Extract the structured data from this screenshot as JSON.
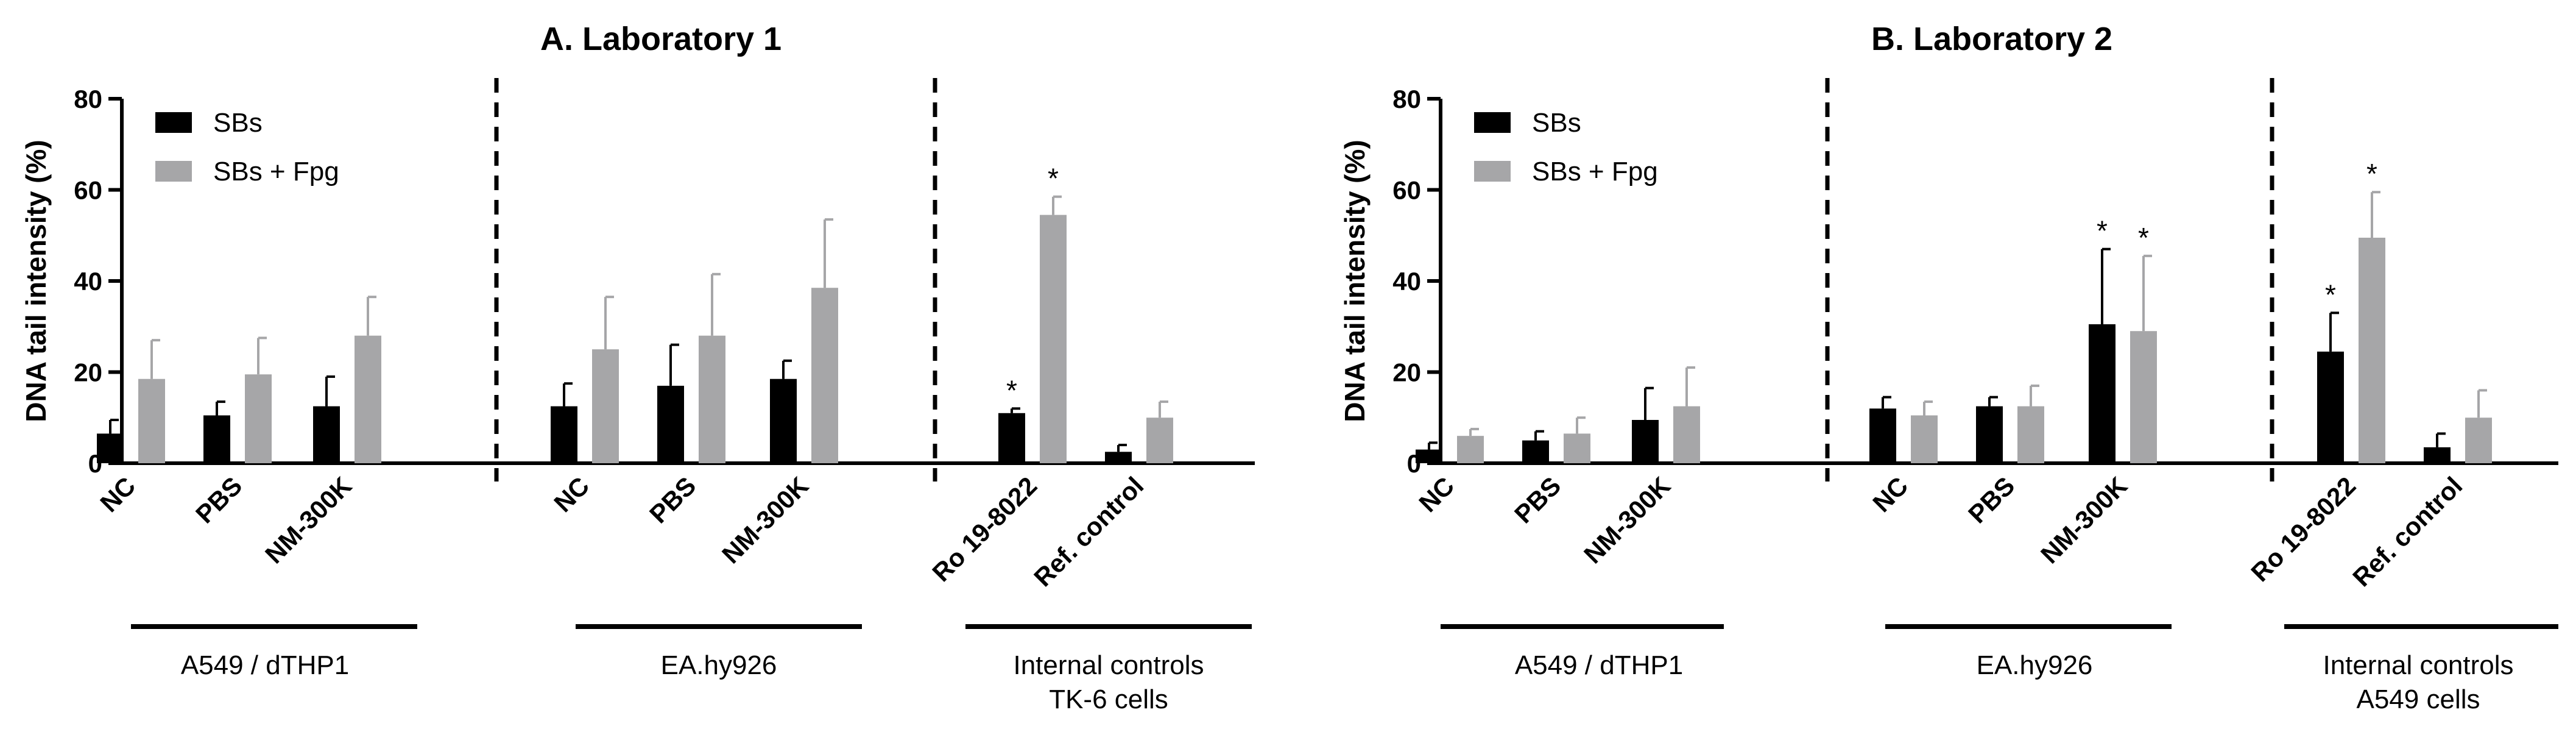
{
  "colors": {
    "sbs": "#000000",
    "sbs_fpg": "#a6a6a8",
    "axis": "#000000"
  },
  "chart_data": [
    {
      "type": "bar",
      "title": "A. Laboratory 1",
      "ylabel": "DNA tail intensity (%)",
      "xlabel": "",
      "ylim": [
        0,
        80
      ],
      "yticks": [
        "0",
        "20",
        "40",
        "60",
        "80"
      ],
      "categories": [
        "NC",
        "PBS",
        "NM-300K",
        "NC",
        "PBS",
        "NM-300K",
        "Ro 19-8022",
        "Ref. control"
      ],
      "series": [
        {
          "name": "SBs",
          "values": [
            6.5,
            10.5,
            12.5,
            12.5,
            17,
            18.5,
            11,
            2.5
          ],
          "errors": [
            3,
            3,
            6.5,
            5,
            9,
            4,
            1,
            1.5
          ]
        },
        {
          "name": "SBs + Fpg",
          "values": [
            18.5,
            19.5,
            28,
            25,
            28,
            38.5,
            54.5,
            10
          ],
          "errors": [
            8.5,
            8,
            8.5,
            11.5,
            13.5,
            15,
            4,
            3.5
          ]
        }
      ],
      "significance": [
        {
          "category_index": 6,
          "series": 0,
          "label": "*"
        },
        {
          "category_index": 6,
          "series": 1,
          "label": "*"
        }
      ],
      "groups": [
        {
          "label": "A549 / dTHP1",
          "range": [
            0,
            2
          ]
        },
        {
          "label": "EA.hy926",
          "range": [
            3,
            5
          ]
        },
        {
          "label": "Internal controls\nTK-6 cells",
          "range": [
            6,
            7
          ]
        }
      ],
      "legend": {
        "position": "top-left",
        "entries": [
          "SBs",
          "SBs + Fpg"
        ]
      }
    },
    {
      "type": "bar",
      "title": "B. Laboratory 2",
      "ylabel": "DNA tail intensity (%)",
      "xlabel": "",
      "ylim": [
        0,
        80
      ],
      "yticks": [
        "0",
        "20",
        "40",
        "60",
        "80"
      ],
      "categories": [
        "NC",
        "PBS",
        "NM-300K",
        "NC",
        "PBS",
        "NM-300K",
        "Ro 19-8022",
        "Ref. control"
      ],
      "series": [
        {
          "name": "SBs",
          "values": [
            3,
            5,
            9.5,
            12,
            12.5,
            30.5,
            24.5,
            3.5
          ],
          "errors": [
            1.5,
            2,
            7,
            2.5,
            2,
            16.5,
            8.5,
            3
          ]
        },
        {
          "name": "SBs + Fpg",
          "values": [
            6,
            6.5,
            12.5,
            10.5,
            12.5,
            29,
            49.5,
            10
          ],
          "errors": [
            1.5,
            3.5,
            8.5,
            3,
            4.5,
            16.5,
            10,
            6
          ]
        }
      ],
      "significance": [
        {
          "category_index": 5,
          "series": 0,
          "label": "*"
        },
        {
          "category_index": 5,
          "series": 1,
          "label": "*"
        },
        {
          "category_index": 6,
          "series": 0,
          "label": "*"
        },
        {
          "category_index": 6,
          "series": 1,
          "label": "*"
        }
      ],
      "groups": [
        {
          "label": "A549 / dTHP1",
          "range": [
            0,
            2
          ]
        },
        {
          "label": "EA.hy926",
          "range": [
            3,
            5
          ]
        },
        {
          "label": "Internal controls\nA549 cells",
          "range": [
            6,
            7
          ]
        }
      ],
      "legend": {
        "position": "top-left",
        "entries": [
          "SBs",
          "SBs + Fpg"
        ]
      }
    }
  ]
}
